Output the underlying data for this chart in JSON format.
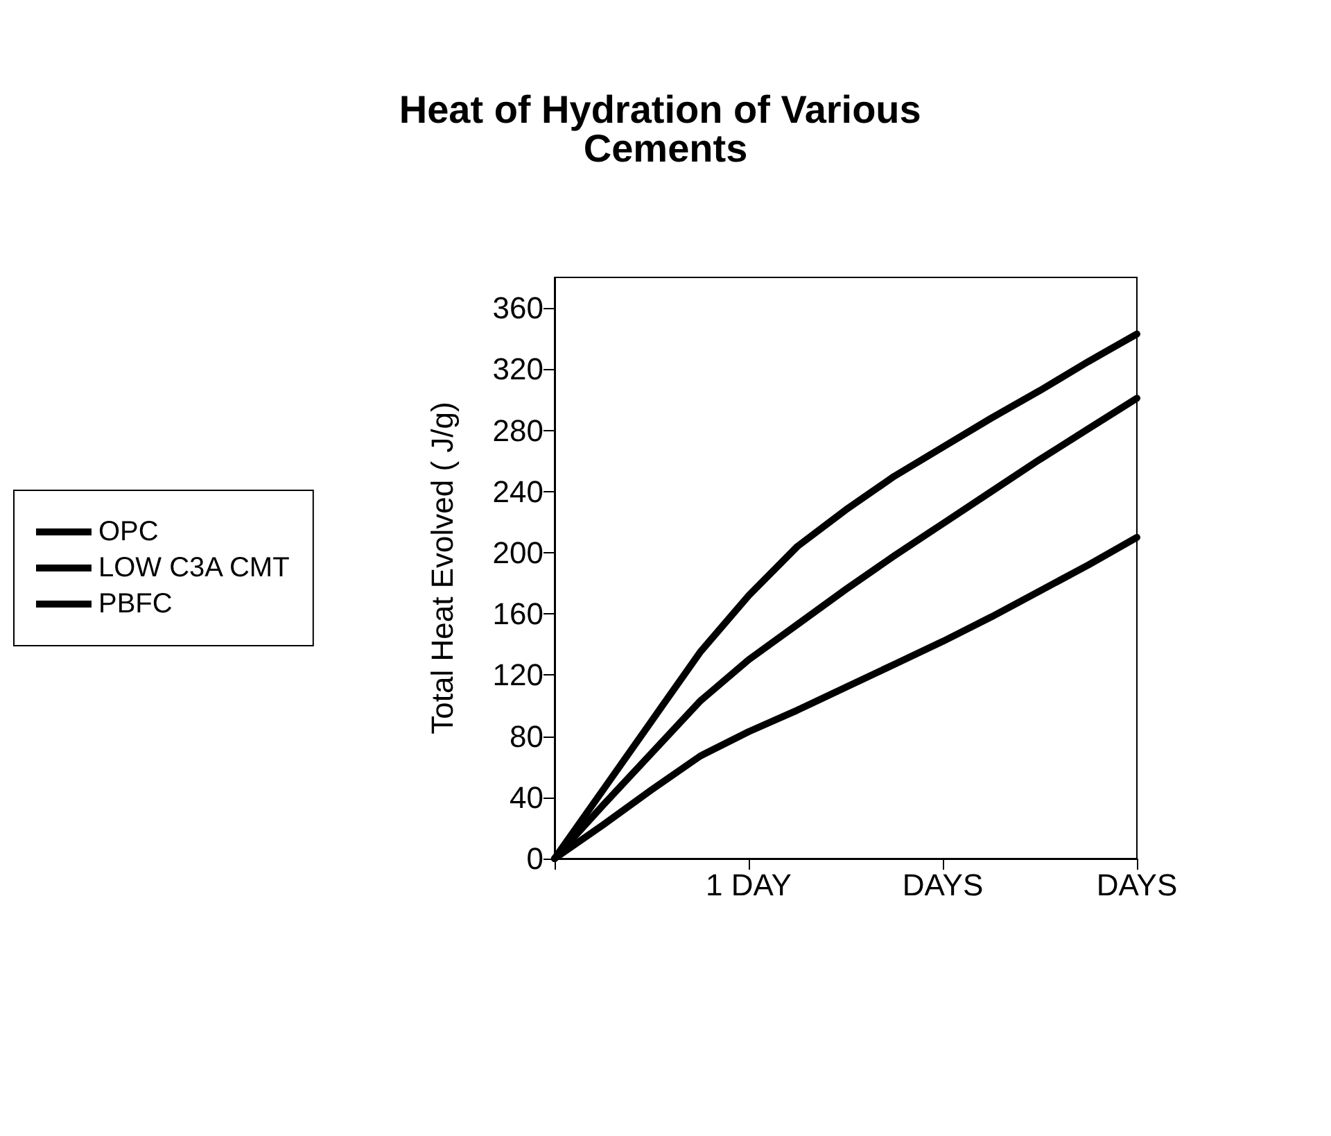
{
  "chart_data": {
    "type": "line",
    "title": "Heat of Hydration of Various Cements",
    "ylabel": "Total Heat Evolved ( J/g)",
    "categories": [
      null,
      null,
      null,
      null,
      "1 DAY",
      null,
      null,
      null,
      "DAYS",
      null,
      null,
      null,
      "DAYS"
    ],
    "ylim": [
      0,
      380
    ],
    "yticks": [
      0,
      40,
      80,
      120,
      160,
      200,
      240,
      280,
      320,
      360
    ],
    "series": [
      {
        "name": "OPC",
        "color": "#000000",
        "values": [
          0,
          45,
          90,
          135,
          172,
          204,
          228,
          250,
          269,
          288,
          306,
          325,
          343
        ]
      },
      {
        "name": "LOW C3A CMT",
        "color": "#000000",
        "values": [
          0,
          35,
          69,
          103,
          130,
          153,
          176,
          198,
          219,
          240,
          261,
          281,
          301
        ]
      },
      {
        "name": "PBFC",
        "color": "#000000",
        "values": [
          0,
          22,
          45,
          67,
          83,
          97,
          112,
          127,
          142,
          158,
          175,
          192,
          210
        ]
      }
    ],
    "legend": "left",
    "grid": false,
    "marker": "none",
    "line_style": "solid"
  }
}
